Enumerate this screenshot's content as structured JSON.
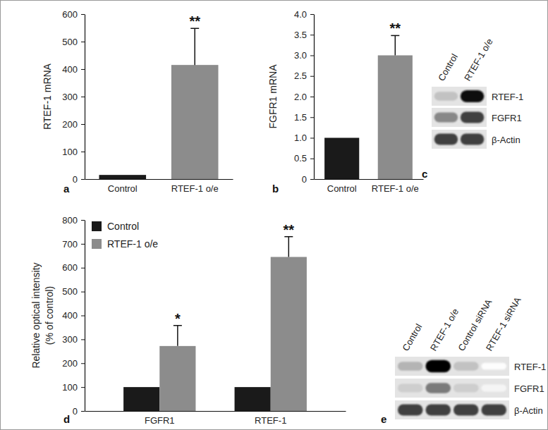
{
  "chart_data": [
    {
      "type": "bar",
      "panel_label": "a",
      "y_label": "RTEF-1 mRNA",
      "categories": [
        "Control",
        "RTEF-1 o/e"
      ],
      "values": [
        15,
        415
      ],
      "errors": [
        null,
        133
      ],
      "colors": [
        "#1a1a1a",
        "#8c8c8c"
      ],
      "significance": [
        null,
        "**"
      ],
      "ylim": [
        0,
        600
      ],
      "yticks": [
        0,
        100,
        200,
        300,
        400,
        500,
        600
      ],
      "grid": false
    },
    {
      "type": "bar",
      "panel_label": "b",
      "y_label": "FGFR1 mRNA",
      "categories": [
        "Control",
        "RTEF-1 o/e"
      ],
      "values": [
        1.0,
        3.0
      ],
      "errors": [
        null,
        0.48
      ],
      "colors": [
        "#1a1a1a",
        "#8c8c8c"
      ],
      "significance": [
        null,
        "**"
      ],
      "ylim": [
        0,
        4
      ],
      "yticks": [
        0,
        0.5,
        {
          "value": 1,
          "label": "1.0"
        },
        1.5,
        {
          "value": 2,
          "label": "2.0"
        },
        2.5,
        {
          "value": 3,
          "label": "3.0"
        },
        3.5,
        {
          "value": 4,
          "label": "4.0"
        }
      ],
      "grid": false
    },
    {
      "type": "blot",
      "panel_label": "c",
      "lanes": [
        "Control",
        "RTEF-1 o/e"
      ],
      "rows": [
        {
          "name": "RTEF-1",
          "values": [
            0.35,
            0.95
          ]
        },
        {
          "name": "FGFR1",
          "values": [
            0.55,
            0.8
          ]
        },
        {
          "name": "β-Actin",
          "values": [
            0.8,
            0.8
          ]
        }
      ]
    },
    {
      "type": "bar",
      "panel_label": "d",
      "y_label": [
        "Relative optical intensity",
        "(% of control)"
      ],
      "categories": [
        "FGFR1",
        "RTEF-1"
      ],
      "series": [
        {
          "name": "Control",
          "color": "#1a1a1a",
          "values": [
            100,
            100
          ]
        },
        {
          "name": "RTEF-1 o/e",
          "color": "#8c8c8c",
          "values": [
            272,
            645
          ],
          "errors": [
            86,
            85
          ],
          "significance": [
            "*",
            "**"
          ]
        }
      ],
      "ylim": [
        0,
        800
      ],
      "yticks": [
        0,
        100,
        200,
        300,
        400,
        500,
        600,
        700,
        800
      ],
      "legend": "upper left",
      "grid": false
    },
    {
      "type": "blot",
      "panel_label": "e",
      "lanes": [
        "Control",
        "RTEF-1 o/e",
        "Control siRNA",
        "RTEF-1 siRNA"
      ],
      "rows": [
        {
          "name": "RTEF-1",
          "values": [
            0.4,
            1.0,
            0.35,
            0.02
          ]
        },
        {
          "name": "FGFR1",
          "values": [
            0.3,
            0.6,
            0.3,
            0.08
          ]
        },
        {
          "name": "β-Actin",
          "values": [
            0.8,
            0.8,
            0.8,
            0.8
          ]
        }
      ]
    }
  ]
}
